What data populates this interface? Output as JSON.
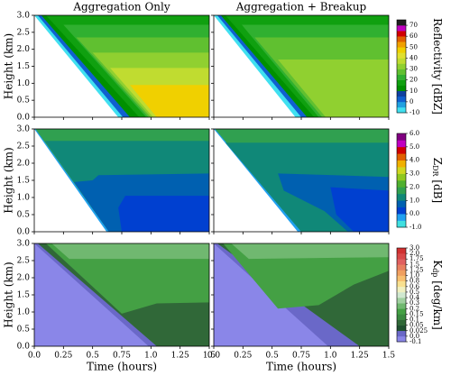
{
  "chart_data": {
    "type": "contour",
    "columns": [
      "Aggregation Only",
      "Aggregation + Breakup"
    ],
    "xlabel": "Time (hours)",
    "ylabel": "Height (km)",
    "xlim": [
      0,
      1.5
    ],
    "ylim": [
      0,
      3
    ],
    "xticks": [
      {
        "value": 0,
        "label": "0.0"
      },
      0.25,
      0.5,
      0.75,
      {
        "value": 1,
        "label": "1.0"
      },
      1.25,
      1.5
    ],
    "yticks": [
      {
        "value": 0,
        "label": "0.0"
      },
      0.5,
      {
        "value": 1,
        "label": "1.0"
      },
      1.5,
      {
        "value": 2,
        "label": "2.0"
      },
      2.5,
      {
        "value": 3,
        "label": "3.0"
      }
    ],
    "rows": [
      {
        "colorbar": {
          "label_parts": [
            "Reflectivity [dBZ]"
          ],
          "spacing": "proportional",
          "lim": [
            -10,
            75
          ],
          "ticks": [
            -10,
            0,
            10,
            20,
            30,
            40,
            50,
            60,
            70
          ],
          "colors": [
            "#40e0f0",
            "#20a0e0",
            "#1060d0",
            "#1040a0",
            "#009000",
            "#10a010",
            "#30b030",
            "#60c030",
            "#90d030",
            "#c0dc30",
            "#e0e030",
            "#f0d000",
            "#f0a000",
            "#e06000",
            "#d00000",
            "#c000c0",
            "#202020"
          ]
        }
      },
      {
        "colorbar": {
          "label_parts": [
            "Z",
            "DR",
            " [dB]"
          ],
          "spacing": "proportional",
          "lim": [
            -1,
            6
          ],
          "ticks": [
            {
              "value": -1,
              "label": "-1.0"
            },
            {
              "value": 0,
              "label": "0.0"
            },
            {
              "value": 1,
              "label": "1.0"
            },
            {
              "value": 2,
              "label": "2.0"
            },
            {
              "value": 3,
              "label": "3.0"
            },
            {
              "value": 4,
              "label": "4.0"
            },
            {
              "value": 5,
              "label": "5.0"
            },
            {
              "value": 6,
              "label": "6.0"
            }
          ],
          "colors": [
            "#40e0e0",
            "#20a0f0",
            "#0040d0",
            "#0060b0",
            "#108878",
            "#30a050",
            "#50b030",
            "#90c820",
            "#d0d820",
            "#f0b000",
            "#e06000",
            "#d00000",
            "#c000c0",
            "#800080"
          ]
        }
      },
      {
        "colorbar": {
          "label_parts": [
            "K",
            "dp",
            " [deg/km]"
          ],
          "spacing": "uniform",
          "ticks": [
            -0.1,
            {
              "value": 0,
              "label": "0.0"
            },
            0.025,
            0.05,
            0.1,
            0.15,
            0.2,
            0.3,
            0.4,
            0.5,
            0.6,
            0.8,
            {
              "value": 1,
              "label": "1.0"
            },
            1.25,
            1.5,
            1.75,
            {
              "value": 2,
              "label": "2.0"
            },
            {
              "value": 3,
              "label": "3.0"
            }
          ],
          "colors": [
            "#8a86e8",
            "#6a68c8",
            "#205030",
            "#306838",
            "#3a8a40",
            "#44a044",
            "#70b870",
            "#a0d0a0",
            "#d0e8d0",
            "#f0f0c0",
            "#f8e090",
            "#f8c070",
            "#f0a060",
            "#e88060",
            "#e06060",
            "#d84848",
            "#d03030"
          ]
        }
      }
    ]
  }
}
